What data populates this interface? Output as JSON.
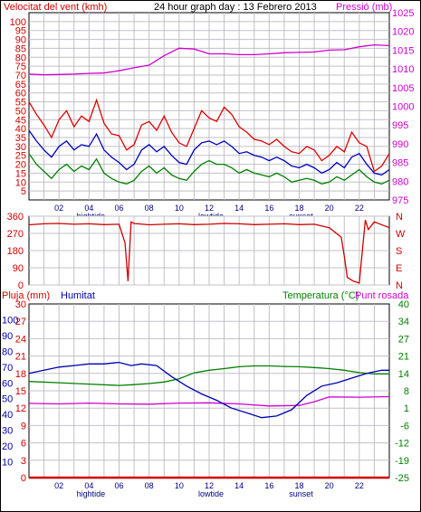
{
  "colors": {
    "wind_max": "#e00000",
    "wind_avg": "#0000c0",
    "wind_min": "#008000",
    "pressure": "#d000d0",
    "direction": "#d00000",
    "rain": "#d00000",
    "humidity": "#0000b0",
    "temperature": "#008000",
    "dewpoint": "#d000d0",
    "grid": "#c0c0c8",
    "frame": "#000000"
  },
  "chart_data": [
    {
      "type": "line",
      "title": "24 hour graph day : 13 Febrero 2013",
      "ylabel": "Velocitat del vent (kmh)",
      "y2label": "Pressió (mb)",
      "ylim": [
        0,
        105
      ],
      "yticks": [
        0,
        5,
        10,
        15,
        20,
        25,
        30,
        35,
        40,
        45,
        50,
        55,
        60,
        65,
        70,
        75,
        80,
        85,
        90,
        95,
        100,
        105
      ],
      "yticklabels": [
        "5",
        "10",
        "15",
        "20",
        "25",
        "30",
        "35",
        "40",
        "45",
        "50",
        "55",
        "60",
        "65",
        "70",
        "75",
        "80",
        "85",
        "90",
        "95",
        "100"
      ],
      "y2lim": [
        975,
        1025
      ],
      "y2ticks": [
        975,
        980,
        985,
        990,
        995,
        1000,
        1005,
        1010,
        1015,
        1020,
        1025
      ],
      "xlim": [
        0,
        24
      ],
      "xticks": [
        2,
        4,
        6,
        8,
        10,
        12,
        14,
        16,
        18,
        20,
        22
      ],
      "xticklabels": [
        "02",
        "04",
        "06",
        "08",
        "10",
        "12",
        "14",
        "16",
        "18",
        "20",
        "22"
      ],
      "events": [
        {
          "label": "hightide",
          "x": 4
        },
        {
          "label": "lowtide",
          "x": 12
        },
        {
          "label": "sunset",
          "x": 18
        }
      ],
      "series_names": {
        "pressure": "",
        "wind_max": "",
        "wind_avg": "",
        "wind_min": ""
      },
      "pressure": {
        "x": [
          0,
          1,
          2,
          3,
          4,
          5,
          6,
          7,
          8,
          9,
          10,
          11,
          12,
          13,
          14,
          15,
          16,
          17,
          18,
          19,
          20,
          21,
          22,
          23,
          24
        ],
        "y": [
          1008.6,
          1008.4,
          1008.5,
          1008.6,
          1008.8,
          1008.9,
          1009.5,
          1010.3,
          1011.0,
          1013.5,
          1015.5,
          1015.3,
          1014.0,
          1014.0,
          1013.8,
          1013.8,
          1014.0,
          1014.3,
          1014.4,
          1014.5,
          1015.0,
          1015.1,
          1015.9,
          1016.4,
          1016.2
        ]
      },
      "wind_max": {
        "x": [
          0,
          0.5,
          1,
          1.5,
          2,
          2.5,
          3,
          3.5,
          4,
          4.5,
          5,
          5.5,
          6,
          6.5,
          7,
          7.5,
          8,
          8.5,
          9,
          9.5,
          10,
          10.5,
          11,
          11.5,
          12,
          12.5,
          13,
          13.5,
          14,
          14.5,
          15,
          15.5,
          16,
          16.5,
          17,
          17.5,
          18,
          18.5,
          19,
          19.5,
          20,
          20.5,
          21,
          21.5,
          22,
          22.5,
          23,
          23.5,
          24
        ],
        "y": [
          55,
          48,
          42,
          35,
          45,
          50,
          41,
          47,
          44,
          56,
          43,
          37,
          36,
          28,
          31,
          42,
          44,
          39,
          47,
          38,
          32,
          30,
          40,
          50,
          46,
          44,
          52,
          48,
          41,
          38,
          34,
          33,
          31,
          34,
          30,
          27,
          26,
          30,
          28,
          22,
          25,
          30,
          27,
          38,
          32,
          30,
          16,
          19,
          26
        ]
      },
      "wind_avg": {
        "x": [
          0,
          0.5,
          1,
          1.5,
          2,
          2.5,
          3,
          3.5,
          4,
          4.5,
          5,
          5.5,
          6,
          6.5,
          7,
          7.5,
          8,
          8.5,
          9,
          9.5,
          10,
          10.5,
          11,
          11.5,
          12,
          12.5,
          13,
          13.5,
          14,
          14.5,
          15,
          15.5,
          16,
          16.5,
          17,
          17.5,
          18,
          18.5,
          19,
          19.5,
          20,
          20.5,
          21,
          21.5,
          22,
          22.5,
          23,
          23.5,
          24
        ],
        "y": [
          39,
          33,
          28,
          24,
          30,
          33,
          28,
          31,
          30,
          37,
          28,
          24,
          21,
          17,
          20,
          28,
          31,
          27,
          30,
          25,
          21,
          20,
          28,
          32,
          33,
          31,
          33,
          30,
          26,
          27,
          25,
          24,
          22,
          24,
          22,
          19,
          18,
          20,
          18,
          15,
          17,
          21,
          18,
          24,
          26,
          20,
          15,
          14,
          17
        ]
      },
      "wind_min": {
        "x": [
          0,
          0.5,
          1,
          1.5,
          2,
          2.5,
          3,
          3.5,
          4,
          4.5,
          5,
          5.5,
          6,
          6.5,
          7,
          7.5,
          8,
          8.5,
          9,
          9.5,
          10,
          10.5,
          11,
          11.5,
          12,
          12.5,
          13,
          13.5,
          14,
          14.5,
          15,
          15.5,
          16,
          16.5,
          17,
          17.5,
          18,
          18.5,
          19,
          19.5,
          20,
          20.5,
          21,
          21.5,
          22,
          22.5,
          23,
          23.5,
          24
        ],
        "y": [
          26,
          20,
          16,
          12,
          17,
          20,
          16,
          19,
          17,
          23,
          15,
          12,
          10,
          9,
          11,
          16,
          19,
          15,
          18,
          14,
          12,
          11,
          16,
          20,
          22,
          20,
          20,
          18,
          15,
          17,
          15,
          14,
          13,
          15,
          13,
          10,
          11,
          12,
          11,
          9,
          10,
          13,
          11,
          14,
          17,
          13,
          10,
          9,
          11
        ]
      }
    },
    {
      "type": "line",
      "ylabel": "",
      "ylim": [
        0,
        360
      ],
      "yticks": [
        0,
        90,
        180,
        270,
        360
      ],
      "yticklabels": [
        "0",
        "90",
        "180",
        "270",
        "360"
      ],
      "y2ticklabels": [
        "N",
        "E",
        "S",
        "W",
        "N"
      ],
      "xlim": [
        0,
        24
      ],
      "series_names": {
        "direction": ""
      },
      "direction": {
        "x": [
          0,
          1,
          2,
          3,
          4,
          5,
          6,
          6.4,
          6.6,
          6.8,
          7,
          8,
          9,
          10,
          11,
          12,
          13,
          14,
          15,
          16,
          17,
          18,
          19,
          20,
          20.8,
          21.0,
          21.2,
          21.6,
          22.0,
          22.4,
          22.6,
          23,
          24
        ],
        "y": [
          315,
          320,
          322,
          318,
          320,
          316,
          318,
          220,
          20,
          330,
          322,
          315,
          318,
          320,
          316,
          318,
          322,
          320,
          316,
          318,
          320,
          316,
          318,
          300,
          250,
          150,
          40,
          20,
          10,
          340,
          290,
          330,
          300
        ]
      }
    },
    {
      "type": "line",
      "ylabel": "Pluja (mm)",
      "ylabel2": "Humitat",
      "y2label": "Temperatura (°C)",
      "y2label_b": "Punt rosada",
      "ylim_rain": [
        0,
        30
      ],
      "rain_ticks": [
        "0",
        "3",
        "6",
        "9",
        "12",
        "15",
        "18",
        "21",
        "24",
        "27",
        "30"
      ],
      "humidity_ticks": [
        "10",
        "20",
        "30",
        "40",
        "50",
        "60",
        "70",
        "80",
        "90",
        "100"
      ],
      "ylim_temp": [
        -25,
        40
      ],
      "temp_ticks": [
        "-25",
        "-19",
        "-12",
        "-6",
        "1",
        "8",
        "14",
        "21",
        "27",
        "34",
        "40"
      ],
      "xlim": [
        0,
        24
      ],
      "xticks": [
        2,
        4,
        6,
        8,
        10,
        12,
        14,
        16,
        18,
        20,
        22
      ],
      "xticklabels": [
        "02",
        "04",
        "06",
        "08",
        "10",
        "12",
        "14",
        "16",
        "18",
        "20",
        "22"
      ],
      "events": [
        {
          "label": "hightide",
          "x": 4
        },
        {
          "label": "lowtide",
          "x": 12
        },
        {
          "label": "sunset",
          "x": 18
        }
      ],
      "series_names": {
        "rain": "",
        "humidity": "",
        "temperature": "",
        "dewpoint": ""
      },
      "rain": {
        "x": [
          0,
          24
        ],
        "y": [
          0,
          0
        ]
      },
      "humidity": {
        "x": [
          0,
          1,
          2,
          3,
          4,
          5,
          6,
          6.8,
          7.5,
          8.5,
          9.5,
          10.5,
          11.5,
          12.5,
          13.5,
          14.5,
          15.5,
          16.5,
          17.5,
          18.5,
          19.5,
          20.5,
          21.5,
          22.5,
          23.5,
          24
        ],
        "y": [
          66,
          68,
          70,
          71,
          72,
          72,
          73,
          71,
          72,
          71,
          64,
          58,
          53,
          49,
          44,
          41,
          38,
          39,
          43,
          52,
          58,
          60,
          63,
          66,
          68,
          68
        ]
      },
      "temperature": {
        "x": [
          0,
          2,
          4,
          6,
          7,
          8,
          9,
          10,
          11,
          12,
          13,
          14,
          15,
          16,
          17,
          18,
          19,
          20,
          21,
          22,
          23,
          24
        ],
        "y": [
          11.0,
          10.5,
          10.0,
          9.5,
          9.8,
          10.2,
          10.8,
          12.0,
          14.2,
          15.2,
          15.8,
          16.5,
          16.8,
          16.8,
          16.6,
          16.5,
          16.2,
          15.8,
          15.2,
          14.3,
          13.8,
          13.8
        ]
      },
      "dewpoint": {
        "x": [
          0,
          2,
          4,
          6,
          8,
          10,
          12,
          14,
          16,
          18,
          19,
          20,
          22,
          24
        ],
        "y": [
          2.8,
          2.6,
          2.9,
          2.6,
          2.5,
          2.9,
          3.0,
          2.6,
          1.8,
          2.0,
          3.4,
          5.2,
          5.1,
          5.3
        ]
      }
    }
  ]
}
